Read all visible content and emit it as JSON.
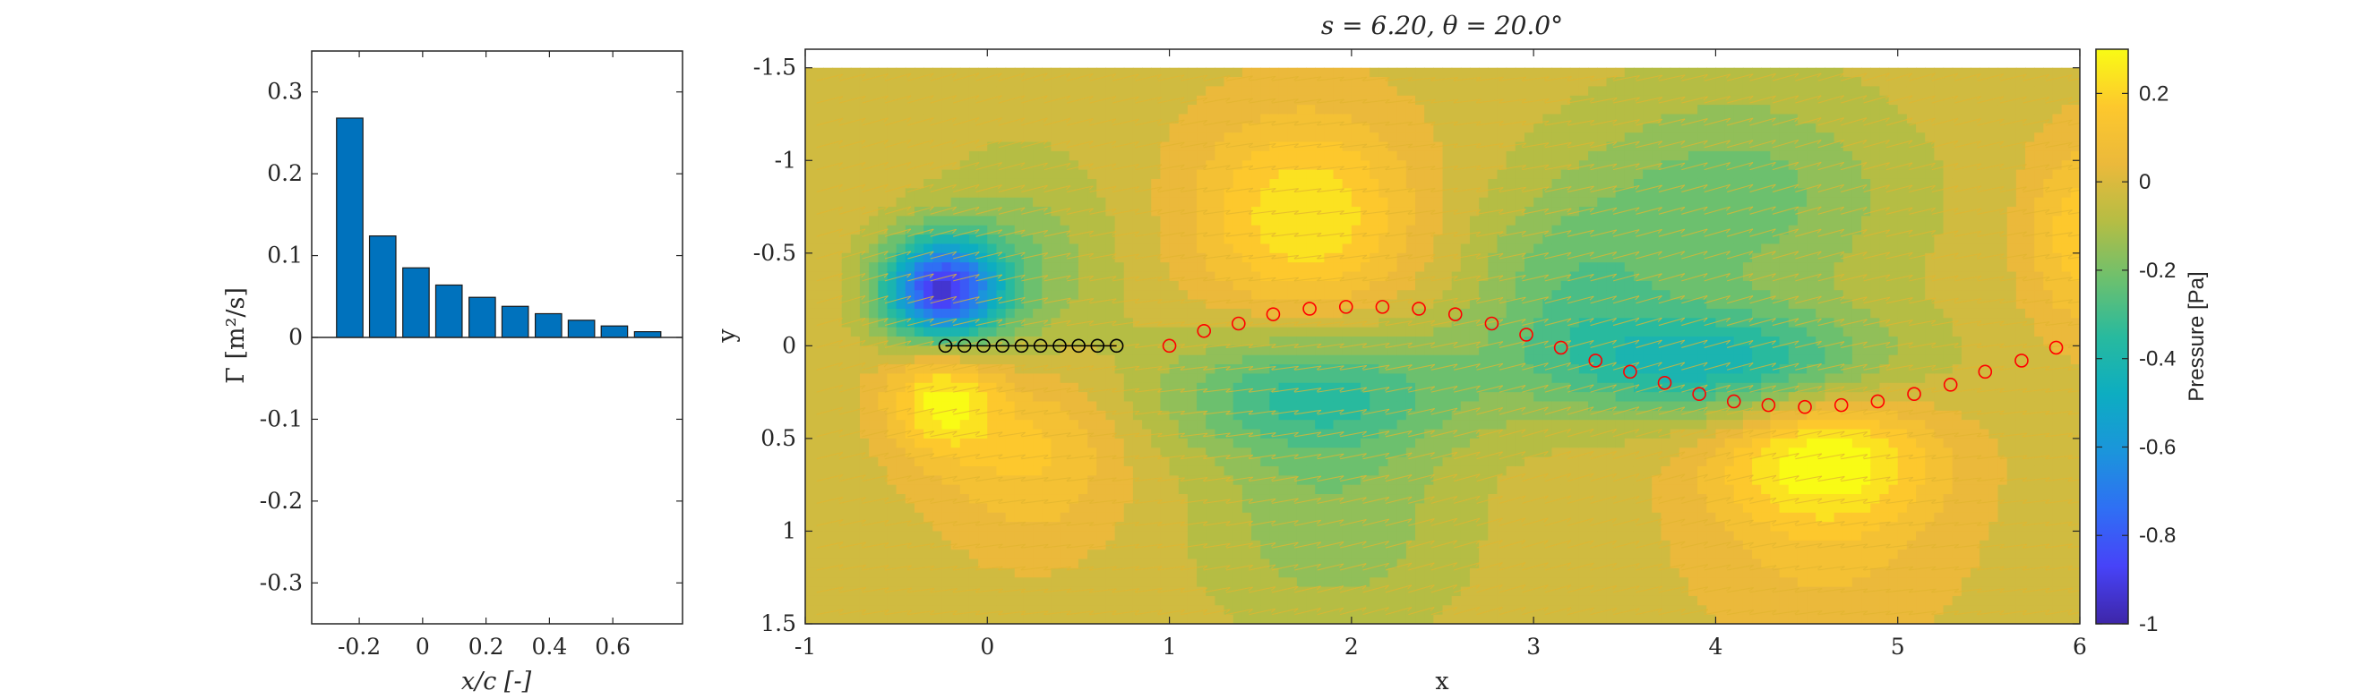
{
  "chart_data": [
    {
      "type": "bar",
      "title": "",
      "xlabel": "x/c [-]",
      "ylabel": "Γ [m²/s]",
      "xlim": [
        -0.35,
        0.82
      ],
      "ylim": [
        -0.35,
        0.35
      ],
      "xticks": [
        "-0.2",
        "0",
        "0.2",
        "0.4",
        "0.6"
      ],
      "xtick_values": [
        -0.2,
        0,
        0.2,
        0.4,
        0.6
      ],
      "yticks": [
        "0.3",
        "0.2",
        "0.1",
        "0",
        "-0.1",
        "-0.2",
        "-0.3"
      ],
      "ytick_values": [
        0.3,
        0.2,
        0.1,
        0,
        -0.1,
        -0.2,
        -0.3
      ],
      "x": [
        -0.23,
        -0.126,
        -0.021,
        0.083,
        0.188,
        0.292,
        0.397,
        0.501,
        0.605,
        0.71
      ],
      "values": [
        0.268,
        0.124,
        0.085,
        0.064,
        0.049,
        0.038,
        0.029,
        0.021,
        0.014,
        0.007
      ],
      "bar_color": "#0072BD",
      "grid": false
    },
    {
      "type": "heatmap",
      "title": "s = 6.20, θ = 20.0°",
      "title_parts": {
        "s_label": "s",
        "s_value": "6.20",
        "theta_label": "θ",
        "theta_value": "20.0°"
      },
      "xlabel": "x",
      "ylabel": "y",
      "xlim": [
        -1,
        6
      ],
      "ylim": [
        -1.6,
        1.5
      ],
      "y_reversed": true,
      "xticks": [
        "-1",
        "0",
        "1",
        "2",
        "3",
        "4",
        "5",
        "6"
      ],
      "xtick_values": [
        -1,
        0,
        1,
        2,
        3,
        4,
        5,
        6
      ],
      "yticks": [
        "-1.5",
        "-1",
        "-0.5",
        "0",
        "0.5",
        "1",
        "1.5"
      ],
      "ytick_values": [
        -1.5,
        -1,
        -0.5,
        0,
        0.5,
        1,
        1.5
      ],
      "field_extent_y": [
        -1.5,
        1.5
      ],
      "pressure_blobs": [
        {
          "x": -0.25,
          "y": -0.3,
          "amp": -0.85,
          "sx": 0.32,
          "sy": 0.28
        },
        {
          "x": -0.25,
          "y": 0.28,
          "amp": 0.3,
          "sx": 0.3,
          "sy": 0.3
        },
        {
          "x": 0.2,
          "y": -0.4,
          "amp": -0.15,
          "sx": 0.5,
          "sy": 0.6
        },
        {
          "x": 0.25,
          "y": 0.55,
          "amp": 0.18,
          "sx": 0.5,
          "sy": 0.5
        },
        {
          "x": 1.75,
          "y": -0.7,
          "amp": 0.28,
          "sx": 0.6,
          "sy": 0.55
        },
        {
          "x": 1.8,
          "y": 0.25,
          "amp": -0.3,
          "sx": 0.85,
          "sy": 0.35
        },
        {
          "x": 1.9,
          "y": 0.95,
          "amp": -0.15,
          "sx": 0.7,
          "sy": 0.6
        },
        {
          "x": 3.2,
          "y": -0.3,
          "amp": -0.18,
          "sx": 0.6,
          "sy": 0.5
        },
        {
          "x": 4.0,
          "y": 0.1,
          "amp": -0.38,
          "sx": 0.9,
          "sy": 0.3
        },
        {
          "x": 4.1,
          "y": -0.8,
          "amp": -0.2,
          "sx": 0.9,
          "sy": 0.6
        },
        {
          "x": 4.6,
          "y": 0.6,
          "amp": 0.32,
          "sx": 0.6,
          "sy": 0.35
        },
        {
          "x": 4.6,
          "y": 1.1,
          "amp": 0.1,
          "sx": 0.7,
          "sy": 0.5
        },
        {
          "x": 6.0,
          "y": -0.6,
          "amp": 0.2,
          "sx": 0.3,
          "sy": 0.5
        }
      ],
      "bound_vortices": {
        "x": [
          -0.23,
          -0.126,
          -0.021,
          0.083,
          0.188,
          0.292,
          0.397,
          0.501,
          0.605,
          0.71
        ],
        "y": [
          0,
          0,
          0,
          0,
          0,
          0,
          0,
          0,
          0,
          0
        ],
        "color": "#000000"
      },
      "wake_vortices": {
        "x": [
          1.0,
          1.19,
          1.38,
          1.57,
          1.77,
          1.97,
          2.17,
          2.37,
          2.57,
          2.77,
          2.96,
          3.15,
          3.34,
          3.53,
          3.72,
          3.91,
          4.1,
          4.29,
          4.49,
          4.69,
          4.89,
          5.09,
          5.29,
          5.48,
          5.68,
          5.87
        ],
        "y": [
          0.0,
          -0.08,
          -0.12,
          -0.17,
          -0.2,
          -0.21,
          -0.21,
          -0.2,
          -0.17,
          -0.12,
          -0.06,
          0.01,
          0.08,
          0.14,
          0.2,
          0.26,
          0.3,
          0.32,
          0.33,
          0.32,
          0.3,
          0.26,
          0.21,
          0.14,
          0.08,
          0.01
        ],
        "color": "#ff0000"
      },
      "quiver_color": "#E2B530",
      "colorbar": {
        "label": "Pressure [Pa]",
        "range": [
          -1,
          0.3
        ],
        "ticks": [
          "0.2",
          "0",
          "-0.2",
          "-0.4",
          "-0.6",
          "-0.8",
          "-1"
        ],
        "tick_values": [
          0.2,
          0,
          -0.2,
          -0.4,
          -0.6,
          -0.8,
          -1
        ],
        "colormap": "parula",
        "colormap_stops": [
          "#3E26A8",
          "#4743F8",
          "#2F6FF4",
          "#1B95DB",
          "#0DADC1",
          "#28BA9E",
          "#6CC06E",
          "#B5BD44",
          "#EBB93B",
          "#FDC82D",
          "#F9FB15"
        ]
      }
    }
  ]
}
